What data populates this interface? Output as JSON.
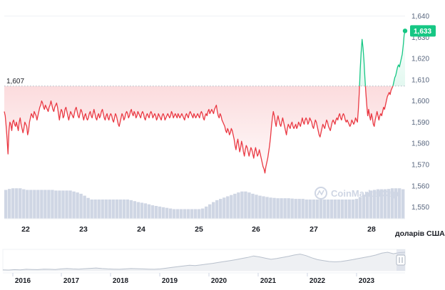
{
  "chart_data": {
    "type": "line",
    "x_tick_labels": [
      "22",
      "23",
      "24",
      "25",
      "26",
      "27",
      "28"
    ],
    "y_tick_labels": [
      "1,640",
      "1,630",
      "1,620",
      "1,610",
      "1,600",
      "1,590",
      "1,580",
      "1,570",
      "1,560",
      "1,550"
    ],
    "ylim": [
      1.5475,
      1.6415
    ],
    "reference_value": 1.607,
    "reference_label": "1,607",
    "current_value": 1.633,
    "current_label": "1,633",
    "y_unit_label": "доларів США",
    "watermark": "CoinMarketCap",
    "series": [
      {
        "values": [
          1.595,
          1.593,
          1.588,
          1.582,
          1.575,
          1.586,
          1.59,
          1.589,
          1.586,
          1.59,
          1.591,
          1.589,
          1.588,
          1.59,
          1.588,
          1.586,
          1.59,
          1.592,
          1.589,
          1.587,
          1.585,
          1.587,
          1.59,
          1.589,
          1.588,
          1.584,
          1.586,
          1.59,
          1.592,
          1.594,
          1.593,
          1.592,
          1.595,
          1.594,
          1.593,
          1.591,
          1.593,
          1.595,
          1.597,
          1.598,
          1.6,
          1.599,
          1.597,
          1.596,
          1.598,
          1.597,
          1.596,
          1.595,
          1.597,
          1.598,
          1.6,
          1.598,
          1.596,
          1.595,
          1.597,
          1.598,
          1.599,
          1.597,
          1.594,
          1.591,
          1.594,
          1.596,
          1.595,
          1.592,
          1.593,
          1.596,
          1.597,
          1.595,
          1.593,
          1.591,
          1.593,
          1.595,
          1.594,
          1.593,
          1.592,
          1.594,
          1.596,
          1.597,
          1.595,
          1.593,
          1.592,
          1.594,
          1.596,
          1.595,
          1.593,
          1.591,
          1.593,
          1.594,
          1.592,
          1.591,
          1.592,
          1.594,
          1.595,
          1.593,
          1.592,
          1.594,
          1.596,
          1.594,
          1.592,
          1.591,
          1.593,
          1.594,
          1.592,
          1.593,
          1.595,
          1.596,
          1.594,
          1.592,
          1.591,
          1.593,
          1.594,
          1.592,
          1.591,
          1.593,
          1.594,
          1.593,
          1.591,
          1.59,
          1.592,
          1.594,
          1.593,
          1.591,
          1.589,
          1.588,
          1.59,
          1.592,
          1.594,
          1.593,
          1.591,
          1.592,
          1.594,
          1.595,
          1.594,
          1.592,
          1.593,
          1.595,
          1.596,
          1.594,
          1.593,
          1.595,
          1.594,
          1.592,
          1.593,
          1.595,
          1.594,
          1.593,
          1.592,
          1.594,
          1.595,
          1.594,
          1.592,
          1.591,
          1.593,
          1.594,
          1.593,
          1.592,
          1.594,
          1.595,
          1.594,
          1.592,
          1.593,
          1.594,
          1.593,
          1.591,
          1.592,
          1.594,
          1.593,
          1.592,
          1.591,
          1.593,
          1.594,
          1.593,
          1.591,
          1.592,
          1.593,
          1.594,
          1.593,
          1.592,
          1.593,
          1.595,
          1.594,
          1.592,
          1.593,
          1.594,
          1.593,
          1.592,
          1.594,
          1.593,
          1.592,
          1.593,
          1.594,
          1.593,
          1.592,
          1.591,
          1.593,
          1.594,
          1.593,
          1.592,
          1.594,
          1.595,
          1.594,
          1.593,
          1.592,
          1.594,
          1.593,
          1.592,
          1.593,
          1.594,
          1.593,
          1.592,
          1.594,
          1.595,
          1.594,
          1.592,
          1.591,
          1.593,
          1.594,
          1.593,
          1.595,
          1.596,
          1.594,
          1.595,
          1.596,
          1.595,
          1.594,
          1.596,
          1.597,
          1.598,
          1.595,
          1.593,
          1.592,
          1.594,
          1.593,
          1.591,
          1.59,
          1.589,
          1.588,
          1.586,
          1.585,
          1.587,
          1.586,
          1.584,
          1.585,
          1.587,
          1.586,
          1.584,
          1.582,
          1.579,
          1.577,
          1.58,
          1.582,
          1.579,
          1.576,
          1.578,
          1.581,
          1.579,
          1.576,
          1.574,
          1.577,
          1.579,
          1.578,
          1.576,
          1.574,
          1.576,
          1.578,
          1.577,
          1.575,
          1.573,
          1.576,
          1.578,
          1.576,
          1.574,
          1.575,
          1.577,
          1.575,
          1.573,
          1.571,
          1.569,
          1.568,
          1.566,
          1.569,
          1.571,
          1.573,
          1.576,
          1.579,
          1.583,
          1.588,
          1.592,
          1.595,
          1.593,
          1.59,
          1.588,
          1.591,
          1.593,
          1.591,
          1.589,
          1.588,
          1.59,
          1.592,
          1.59,
          1.588,
          1.586,
          1.584,
          1.587,
          1.589,
          1.588,
          1.587,
          1.589,
          1.59,
          1.588,
          1.587,
          1.588,
          1.589,
          1.587,
          1.588,
          1.59,
          1.589,
          1.588,
          1.59,
          1.592,
          1.59,
          1.589,
          1.591,
          1.592,
          1.591,
          1.589,
          1.59,
          1.592,
          1.591,
          1.59,
          1.588,
          1.587,
          1.589,
          1.591,
          1.59,
          1.588,
          1.586,
          1.584,
          1.583,
          1.585,
          1.587,
          1.589,
          1.588,
          1.587,
          1.589,
          1.591,
          1.59,
          1.588,
          1.587,
          1.586,
          1.588,
          1.59,
          1.591,
          1.59,
          1.589,
          1.591,
          1.592,
          1.591,
          1.593,
          1.594,
          1.592,
          1.591,
          1.593,
          1.594,
          1.593,
          1.591,
          1.59,
          1.591,
          1.59,
          1.589,
          1.588,
          1.589,
          1.591,
          1.59,
          1.589,
          1.59,
          1.592,
          1.591,
          1.59,
          1.596,
          1.604,
          1.615,
          1.623,
          1.629,
          1.625,
          1.619,
          1.611,
          1.604,
          1.598,
          1.593,
          1.596,
          1.593,
          1.591,
          1.594,
          1.592,
          1.589,
          1.588,
          1.591,
          1.593,
          1.595,
          1.593,
          1.591,
          1.593,
          1.594,
          1.593,
          1.595,
          1.597,
          1.596,
          1.598,
          1.6,
          1.602,
          1.603,
          1.604,
          1.603,
          1.605,
          1.606,
          1.607,
          1.609,
          1.611,
          1.612,
          1.614,
          1.616,
          1.617,
          1.616,
          1.618,
          1.62,
          1.622,
          1.626,
          1.631,
          1.633
        ]
      }
    ],
    "volume": [
      0.9,
      0.93,
      0.95,
      0.95,
      0.95,
      0.92,
      0.9,
      0.9,
      0.9,
      0.9,
      0.9,
      0.9,
      0.9,
      0.9,
      0.88,
      0.88,
      0.88,
      0.88,
      0.88,
      0.85,
      0.82,
      0.78,
      0.72,
      0.65,
      0.6,
      0.6,
      0.6,
      0.6,
      0.6,
      0.6,
      0.6,
      0.6,
      0.6,
      0.6,
      0.6,
      0.58,
      0.55,
      0.52,
      0.5,
      0.48,
      0.45,
      0.42,
      0.4,
      0.38,
      0.36,
      0.34,
      0.32,
      0.3,
      0.3,
      0.3,
      0.3,
      0.3,
      0.3,
      0.3,
      0.3,
      0.32,
      0.38,
      0.45,
      0.52,
      0.58,
      0.62,
      0.66,
      0.7,
      0.74,
      0.78,
      0.82,
      0.85,
      0.85,
      0.82,
      0.78,
      0.75,
      0.72,
      0.7,
      0.68,
      0.66,
      0.65,
      0.64,
      0.64,
      0.64,
      0.64,
      0.63,
      0.62,
      0.62,
      0.62,
      0.6,
      0.6,
      0.6,
      0.6,
      0.6,
      0.6,
      0.6,
      0.6,
      0.6,
      0.6,
      0.6,
      0.6,
      0.6,
      0.6,
      0.62,
      0.68,
      0.75,
      0.82,
      0.88,
      0.9,
      0.92,
      0.92,
      0.92,
      0.93,
      0.95,
      0.95,
      0.95,
      0.92
    ],
    "navigator": {
      "labels": [
        "2016",
        "2017",
        "2018",
        "2019",
        "2020",
        "2021",
        "2022",
        "2023"
      ],
      "values": [
        0.05,
        0.04,
        0.06,
        0.05,
        0.08,
        0.07,
        0.06,
        0.09,
        0.08,
        0.07,
        0.1,
        0.12,
        0.1,
        0.09,
        0.11,
        0.13,
        0.15,
        0.12,
        0.1,
        0.09,
        0.08,
        0.1,
        0.12,
        0.11,
        0.1,
        0.09,
        0.08,
        0.1,
        0.14,
        0.18,
        0.22,
        0.26,
        0.3,
        0.28,
        0.32,
        0.36,
        0.4,
        0.45,
        0.5,
        0.55,
        0.6,
        0.66,
        0.72,
        0.8,
        0.75,
        0.68,
        0.62,
        0.66,
        0.72,
        0.78,
        0.85,
        0.9,
        0.82,
        0.7,
        0.6,
        0.55,
        0.5,
        0.48,
        0.5,
        0.55,
        0.6,
        0.66,
        0.72,
        0.78,
        0.85,
        0.95,
        1.0,
        0.92,
        0.98,
        1.0
      ]
    }
  },
  "colors": {
    "above": "#16c784",
    "below": "#ea3943",
    "badge": "#16c784",
    "volume": "#cfd6e4",
    "grid": "#eff2f5",
    "axis": "#9aa3b1",
    "navigator_line": "#b8c0cc"
  }
}
